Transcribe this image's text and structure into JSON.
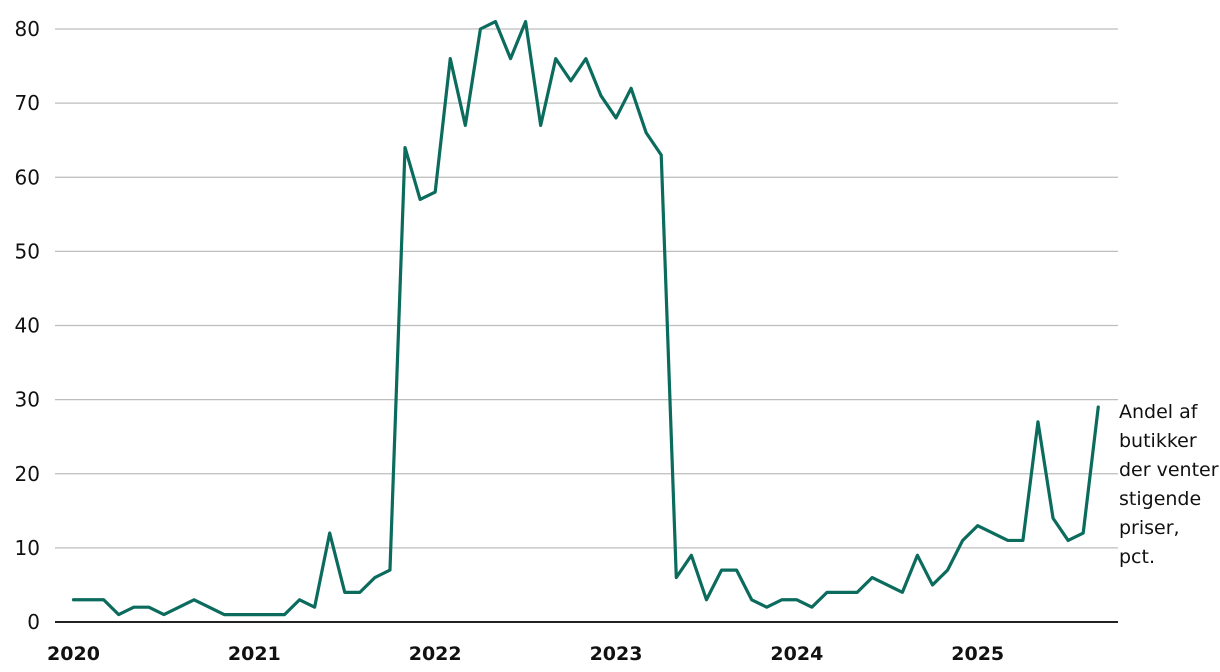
{
  "chart_data": {
    "type": "line",
    "title": "",
    "xlabel": "",
    "ylabel": "",
    "ylim": [
      0,
      80
    ],
    "yticks": [
      0,
      10,
      20,
      30,
      40,
      50,
      60,
      70,
      80
    ],
    "xtick_labels": [
      "2020",
      "2021",
      "2022",
      "2023",
      "2024",
      "2025"
    ],
    "grid": "horizontal",
    "series_label": "Andel af butikker der venter stigende priser, pct.",
    "line_color": "#0b6b5d",
    "x_start": "2020-01",
    "x_end": "2025-09",
    "series": [
      {
        "values": [
          3,
          3,
          3,
          1,
          2,
          2,
          1,
          2,
          3,
          2,
          1,
          1,
          1,
          1,
          1,
          3,
          2,
          12,
          4,
          4,
          6,
          7,
          64,
          57,
          58,
          76,
          67,
          80,
          81,
          76,
          81,
          67,
          76,
          73,
          76,
          71,
          68,
          72,
          66,
          63,
          6,
          9,
          3,
          7,
          7,
          3,
          2,
          3,
          3,
          2,
          4,
          4,
          4,
          6,
          5,
          4,
          9,
          5,
          7,
          11,
          13,
          12,
          11,
          11,
          27,
          14,
          11,
          12,
          29
        ]
      }
    ]
  }
}
